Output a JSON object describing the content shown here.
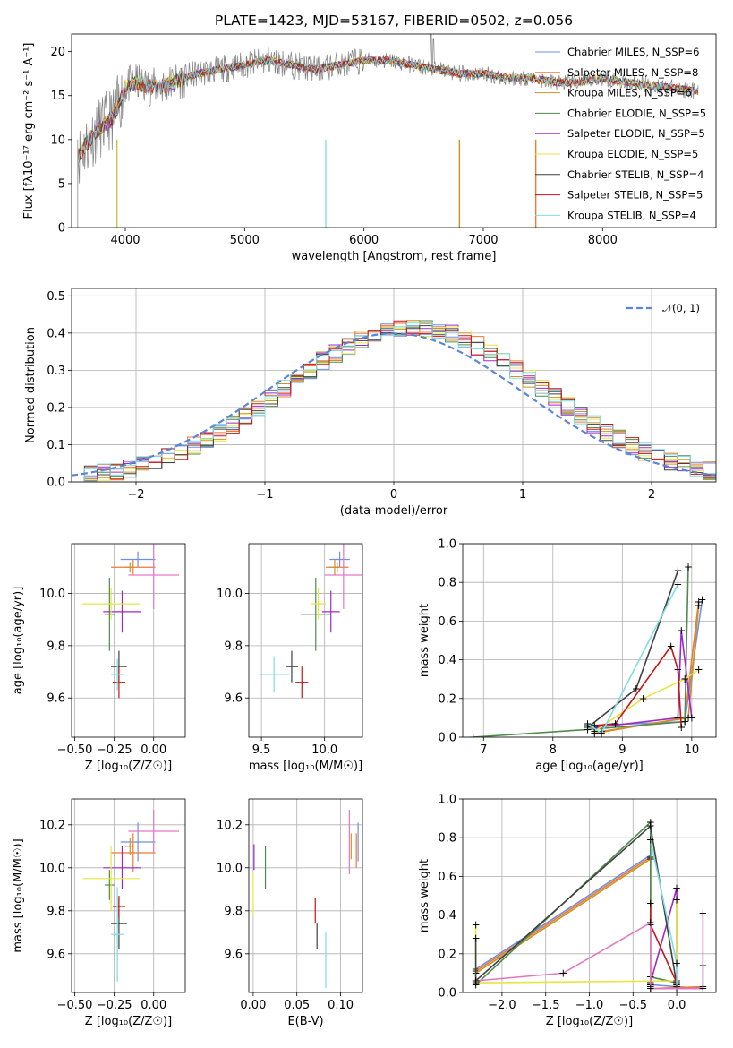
{
  "chart_data": [
    {
      "type": "line",
      "title": "PLATE=1423, MJD=53167, FIBERID=0502, z=0.056",
      "xlabel": "wavelength [Angstrom, rest frame]",
      "ylabel": "Flux [fλ10⁻¹⁷ erg cm⁻² s⁻¹ A⁻¹]",
      "xlim": [
        3550,
        8950
      ],
      "ylim": [
        0,
        22
      ],
      "xticks": [
        "4000",
        "5000",
        "6000",
        "7000",
        "8000"
      ],
      "yticks": [
        "0",
        "5",
        "10",
        "15",
        "20"
      ],
      "grid": false,
      "legend_position": "upper right",
      "legend": [
        {
          "label": "Chabrier MILES, N_SSP=6",
          "color": "#6f8fe6"
        },
        {
          "label": "Salpeter MILES, N_SSP=8",
          "color": "#f07830"
        },
        {
          "label": "Kroupa MILES, N_SSP=6",
          "color": "#c89628"
        },
        {
          "label": "Chabrier ELODIE, N_SSP=5",
          "color": "#4f8a4f"
        },
        {
          "label": "Salpeter ELODIE, N_SSP=5",
          "color": "#a028c8"
        },
        {
          "label": "Kroupa ELODIE, N_SSP=5",
          "color": "#e6e640"
        },
        {
          "label": "Chabrier STELIB, N_SSP=4",
          "color": "#404040"
        },
        {
          "label": "Salpeter STELIB, N_SSP=5",
          "color": "#c81414"
        },
        {
          "label": "Kroupa STELIB, N_SSP=4",
          "color": "#80dce6"
        }
      ],
      "continuum": {
        "x": [
          3600,
          3700,
          3800,
          3900,
          4000,
          4100,
          4200,
          4300,
          4400,
          4600,
          4800,
          5000,
          5200,
          5400,
          5600,
          5800,
          6000,
          6200,
          6400,
          6600,
          6800,
          7000,
          7200,
          7400,
          7600,
          7800,
          8000,
          8200,
          8500,
          8800
        ],
        "y": [
          8.0,
          10.0,
          11.5,
          12.5,
          16.0,
          16.5,
          16.0,
          16.0,
          16.5,
          17.5,
          18.0,
          18.5,
          19.0,
          18.5,
          18.0,
          18.5,
          19.0,
          19.0,
          18.5,
          18.0,
          17.5,
          17.5,
          17.0,
          17.0,
          16.5,
          16.5,
          17.0,
          16.5,
          16.0,
          15.5
        ]
      }
    },
    {
      "type": "histogram",
      "xlabel": "(data-model)/error",
      "ylabel": "Normed distribution",
      "xlim": [
        -2.5,
        2.5
      ],
      "ylim": [
        0,
        0.52
      ],
      "xticks": [
        "−2",
        "−1",
        "0",
        "1",
        "2"
      ],
      "yticks": [
        "0.0",
        "0.1",
        "0.2",
        "0.3",
        "0.4",
        "0.5"
      ],
      "grid": true,
      "legend": [
        {
          "label": "𝒩(0, 1)",
          "style": "dashed",
          "color": "#5b86d6"
        }
      ],
      "bin_width": 0.1
    },
    {
      "type": "scatter",
      "xlabel": "Z [log₁₀(Z/Z☉)]",
      "ylabel": "age  [log₁₀(age/yr)]",
      "xlim": [
        -0.52,
        0.2
      ],
      "ylim": [
        9.45,
        10.19
      ],
      "xticks": [
        "−0.50",
        "−0.25",
        "0.00"
      ],
      "yticks": [
        "9.6",
        "9.8",
        "10.0"
      ],
      "grid": true,
      "points": [
        {
          "model": "Chabrier MILES",
          "x": -0.1,
          "y": 10.13,
          "xerr": 0.11,
          "yerr": 0.03
        },
        {
          "model": "Salpeter MILES",
          "x": -0.13,
          "y": 10.1,
          "xerr": 0.14,
          "yerr": 0.03
        },
        {
          "model": "Kroupa MILES",
          "x": -0.15,
          "y": 10.1,
          "xerr": 0.03,
          "yerr": 0.02
        },
        {
          "model": "Chabrier ELODIE",
          "x": -0.28,
          "y": 9.92,
          "xerr": 0.03,
          "yerr": 0.14
        },
        {
          "model": "Salpeter ELODIE",
          "x": -0.2,
          "y": 9.93,
          "xerr": 0.12,
          "yerr": 0.08
        },
        {
          "model": "Kroupa ELODIE",
          "x": -0.27,
          "y": 9.96,
          "xerr": 0.18,
          "yerr": 0.06
        },
        {
          "model": "Chabrier STELIB",
          "x": -0.22,
          "y": 9.72,
          "xerr": 0.05,
          "yerr": 0.06
        },
        {
          "model": "Salpeter STELIB",
          "x": -0.22,
          "y": 9.66,
          "xerr": 0.04,
          "yerr": 0.06
        },
        {
          "model": "Kroupa STELIB",
          "x": -0.23,
          "y": 9.69,
          "xerr": 0.04,
          "yerr": 0.06
        },
        {
          "model": "extra",
          "x": 0.0,
          "y": 10.07,
          "xerr": 0.16,
          "yerr": 0.13
        }
      ]
    },
    {
      "type": "scatter",
      "xlabel": "mass [log₁₀(M/M☉)]",
      "xlim": [
        9.4,
        10.3
      ],
      "ylim": [
        9.45,
        10.19
      ],
      "xticks": [
        "9.5",
        "10.0"
      ],
      "yticks": [
        "9.6",
        "9.8",
        "10.0"
      ],
      "grid": true,
      "points": [
        {
          "x": 10.12,
          "y": 10.13,
          "xerr": 0.08,
          "yerr": 0.03
        },
        {
          "x": 10.1,
          "y": 10.1,
          "xerr": 0.09,
          "yerr": 0.02
        },
        {
          "x": 10.08,
          "y": 10.1,
          "xerr": 0.04,
          "yerr": 0.03
        },
        {
          "x": 9.93,
          "y": 9.92,
          "xerr": 0.12,
          "yerr": 0.14
        },
        {
          "x": 10.05,
          "y": 9.93,
          "xerr": 0.07,
          "yerr": 0.08
        },
        {
          "x": 9.95,
          "y": 9.96,
          "xerr": 0.06,
          "yerr": 0.06
        },
        {
          "x": 9.74,
          "y": 9.72,
          "xerr": 0.05,
          "yerr": 0.06
        },
        {
          "x": 9.82,
          "y": 9.66,
          "xerr": 0.05,
          "yerr": 0.06
        },
        {
          "x": 9.6,
          "y": 9.69,
          "xerr": 0.12,
          "yerr": 0.07
        },
        {
          "x": 10.15,
          "y": 10.07,
          "xerr": 0.15,
          "yerr": 0.13
        }
      ]
    },
    {
      "type": "line",
      "xlabel": "age  [log₁₀(age/yr)]",
      "ylabel": "mass weight",
      "xlim": [
        6.7,
        10.35
      ],
      "ylim": [
        0,
        1
      ],
      "xticks": [
        "7",
        "8",
        "9",
        "10"
      ],
      "yticks": [
        "0.0",
        "0.2",
        "0.4",
        "0.6",
        "0.8",
        "1.0"
      ],
      "grid": true
    },
    {
      "type": "scatter",
      "xlabel": "Z [log₁₀(Z/Z☉)]",
      "ylabel": "mass [log₁₀(M/M☉)]",
      "xlim": [
        -0.52,
        0.2
      ],
      "ylim": [
        9.42,
        10.32
      ],
      "xticks": [
        "−0.50",
        "−0.25",
        "0.00"
      ],
      "yticks": [
        "9.6",
        "9.8",
        "10.0",
        "10.2"
      ],
      "grid": true
    },
    {
      "type": "scatter",
      "xlabel": "E(B-V)",
      "xlim": [
        -0.005,
        0.125
      ],
      "ylim": [
        9.42,
        10.32
      ],
      "xticks": [
        "0.00",
        "0.05",
        "0.10"
      ],
      "yticks": [
        "9.6",
        "9.8",
        "10.0",
        "10.2"
      ],
      "grid": true
    },
    {
      "type": "line",
      "xlabel": "Z [log₁₀(Z/Z☉)]",
      "ylabel": "mass weight",
      "xlim": [
        -2.45,
        0.45
      ],
      "ylim": [
        0,
        1
      ],
      "xticks": [
        "−2.0",
        "−1.5",
        "−1.0",
        "−0.5",
        "0.0"
      ],
      "yticks": [
        "0.0",
        "0.2",
        "0.4",
        "0.6",
        "0.8",
        "1.0"
      ],
      "grid": true
    }
  ]
}
